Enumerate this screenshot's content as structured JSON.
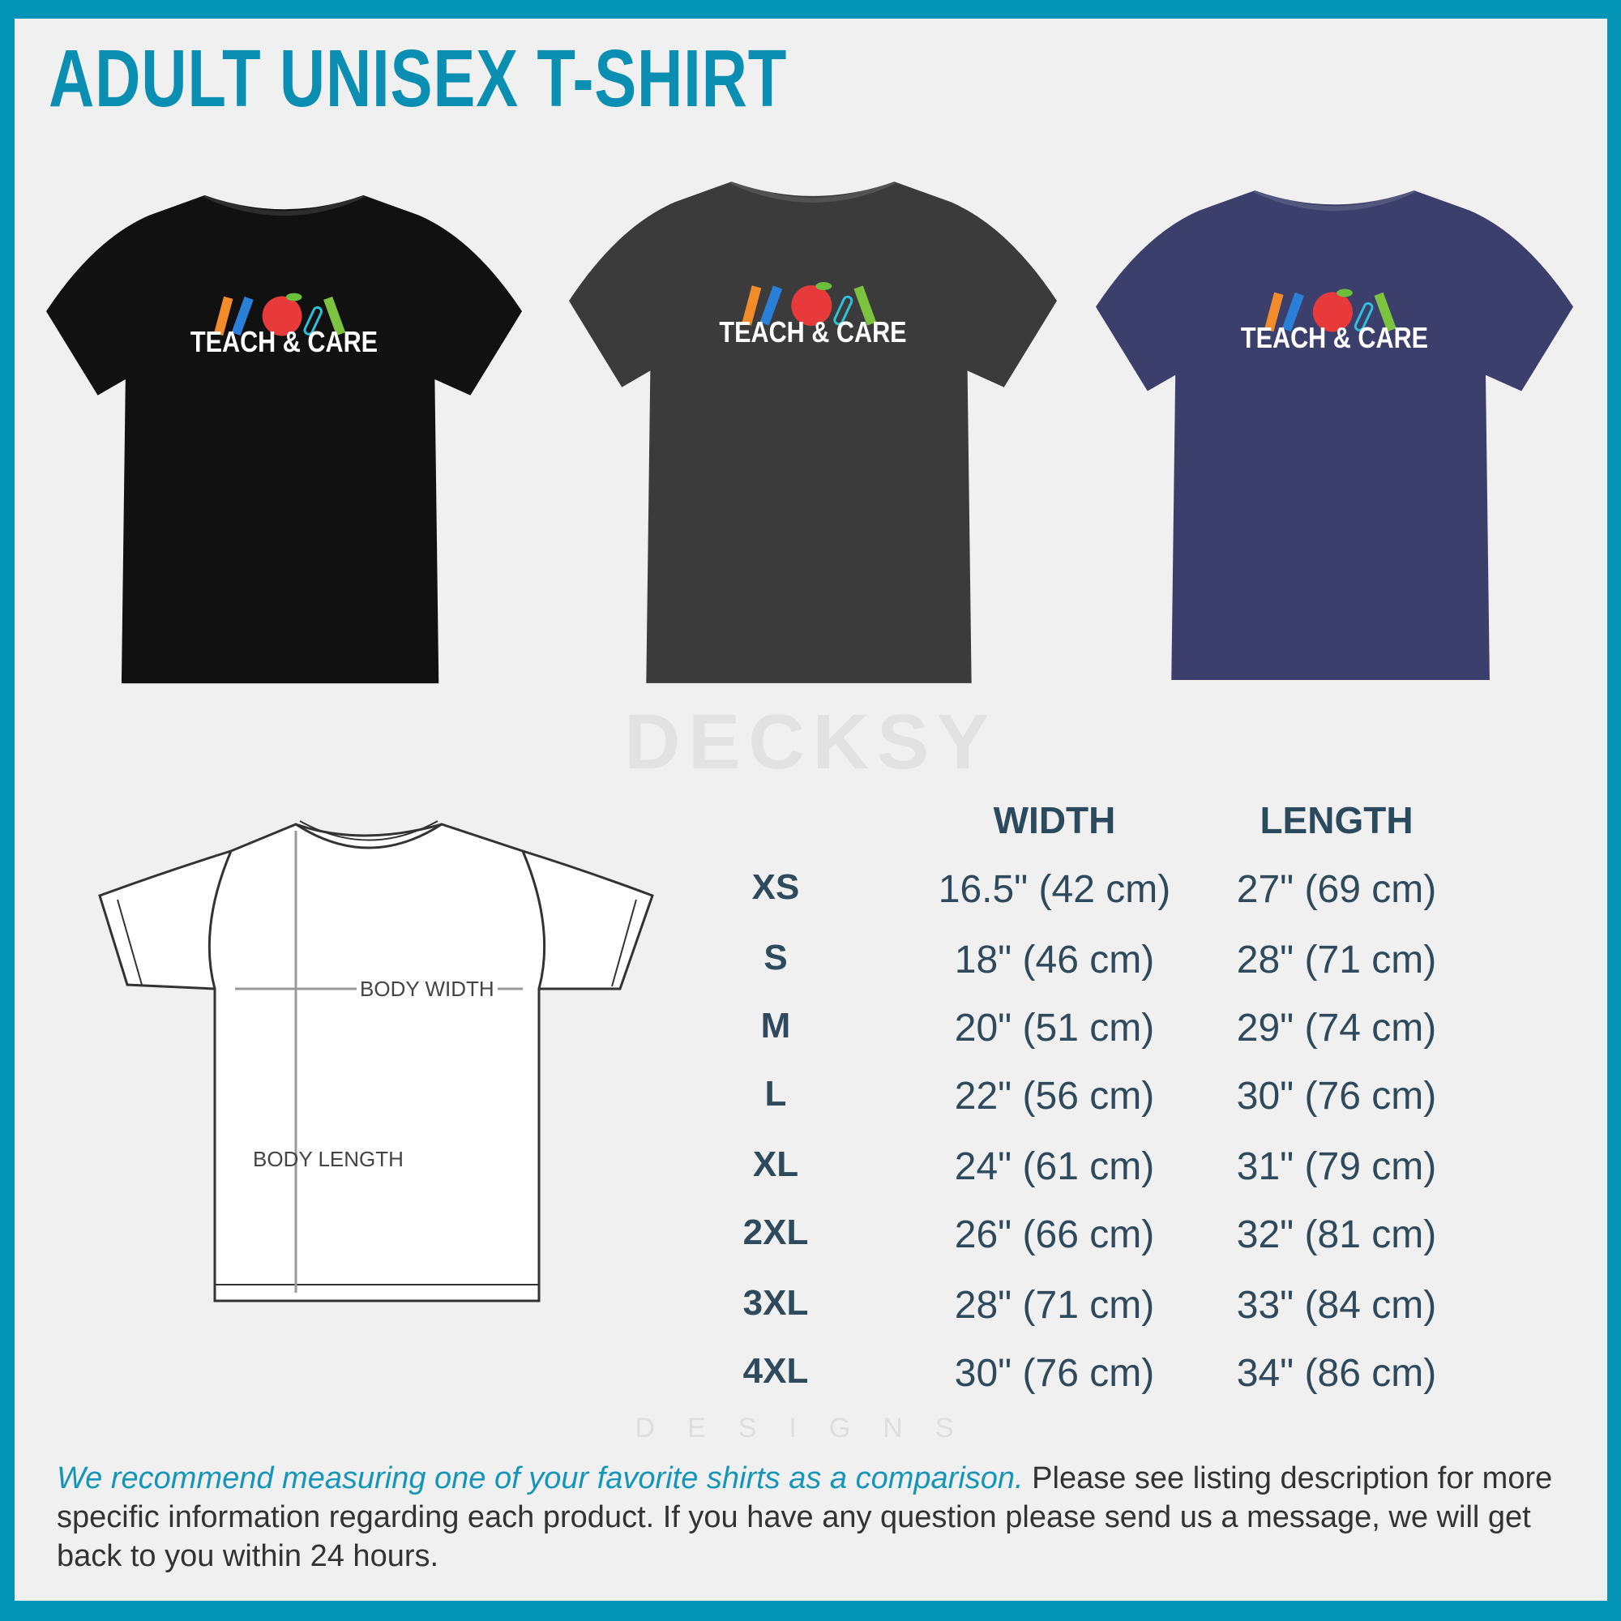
{
  "title": "ADULT UNISEX T-SHIRT",
  "shirts": [
    {
      "color": "#111111",
      "print": "TEACH & CARE"
    },
    {
      "color": "#3b3b3b",
      "print": "TEACH & CARE"
    },
    {
      "color": "#3c3f6b",
      "print": "TEACH & CARE"
    }
  ],
  "watermark": {
    "brand": "DECKSY",
    "sub": "DESIGNS"
  },
  "diagram": {
    "width_label": "BODY WIDTH",
    "length_label": "BODY LENGTH"
  },
  "table": {
    "headers": {
      "width": "WIDTH",
      "length": "LENGTH"
    },
    "rows": [
      {
        "size": "XS",
        "width": "16.5\" (42 cm)",
        "length": "27\" (69 cm)"
      },
      {
        "size": "S",
        "width": "18\" (46 cm)",
        "length": "28\" (71 cm)"
      },
      {
        "size": "M",
        "width": "20\" (51 cm)",
        "length": "29\" (74 cm)"
      },
      {
        "size": "L",
        "width": "22\" (56 cm)",
        "length": "30\" (76 cm)"
      },
      {
        "size": "XL",
        "width": "24\" (61 cm)",
        "length": "31\" (79 cm)"
      },
      {
        "size": "2XL",
        "width": "26\" (66 cm)",
        "length": "32\" (81 cm)"
      },
      {
        "size": "3XL",
        "width": "28\" (71 cm)",
        "length": "33\" (84 cm)"
      },
      {
        "size": "4XL",
        "width": "30\" (76 cm)",
        "length": "34\" (86 cm)"
      }
    ]
  },
  "footer": {
    "highlight": "We recommend measuring one of your favorite shirts as a comparison.",
    "text": " Please see listing description for more specific information regarding each product. If you have any question please send us a message, we will get back to you within 24 hours."
  },
  "colors": {
    "brand": "#0394b6",
    "background": "#f0f0f0",
    "table_text": "#2f4a5c"
  }
}
